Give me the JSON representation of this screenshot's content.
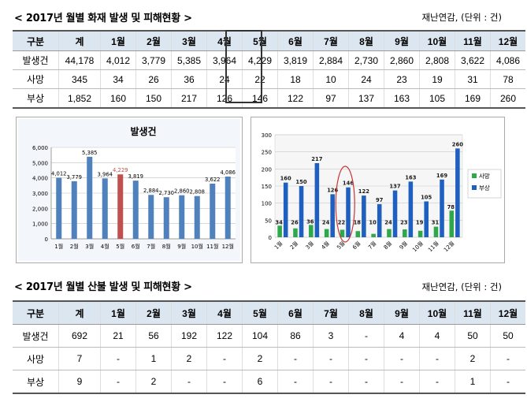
{
  "fire": {
    "title": "< 2017년 월별 화재 발생 및 피해현황 >",
    "source": "재난연감, (단위 : 건)",
    "headers": [
      "구분",
      "계",
      "1월",
      "2월",
      "3월",
      "4월",
      "5월",
      "6월",
      "7월",
      "8월",
      "9월",
      "10월",
      "11월",
      "12월"
    ],
    "rows": [
      [
        "발생건",
        "44,178",
        "4,012",
        "3,779",
        "5,385",
        "3,964",
        "4,229",
        "3,819",
        "2,884",
        "2,730",
        "2,860",
        "2,808",
        "3,622",
        "4,086"
      ],
      [
        "사망",
        "345",
        "34",
        "26",
        "36",
        "24",
        "22",
        "18",
        "10",
        "24",
        "23",
        "19",
        "31",
        "78"
      ],
      [
        "부상",
        "1,852",
        "160",
        "150",
        "217",
        "126",
        "146",
        "122",
        "97",
        "137",
        "163",
        "105",
        "169",
        "260"
      ]
    ]
  },
  "forest": {
    "title": "< 2017년 월별 산불 발생 및 피해현황 >",
    "source": "재난연감, (단위 : 건)",
    "headers": [
      "구분",
      "계",
      "1월",
      "2월",
      "3월",
      "4월",
      "5월",
      "6월",
      "7월",
      "8월",
      "9월",
      "10월",
      "11월",
      "12월"
    ],
    "rows": [
      [
        "발생건",
        "692",
        "21",
        "56",
        "192",
        "122",
        "104",
        "86",
        "3",
        "-",
        "4",
        "4",
        "50",
        "50"
      ],
      [
        "사망",
        "7",
        "-",
        "1",
        "2",
        "-",
        "2",
        "-",
        "-",
        "-",
        "-",
        "-",
        "2",
        "-"
      ],
      [
        "부상",
        "9",
        "-",
        "2",
        "-",
        "-",
        "6",
        "-",
        "-",
        "-",
        "-",
        "-",
        "1",
        "-"
      ]
    ]
  },
  "colors": {
    "blue": "#4f81bd",
    "red": "#c0504d",
    "dark_blue": "#1f5fbf",
    "green": "#2ea84a",
    "highlight_circle": "#cc3333"
  },
  "chart_data": [
    {
      "type": "bar",
      "title": "발생건",
      "categories": [
        "1월",
        "2월",
        "3월",
        "4월",
        "5월",
        "6월",
        "7월",
        "8월",
        "9월",
        "10월",
        "11월",
        "12월"
      ],
      "values": [
        4012,
        3779,
        5385,
        3964,
        4229,
        3819,
        2884,
        2730,
        2860,
        2808,
        3622,
        4086
      ],
      "value_labels": [
        "4,012",
        "3,779",
        "5,385",
        "3,964",
        "4,229",
        "3,819",
        "2,884",
        "2,730",
        "2,860",
        "2,808",
        "3,622",
        "4,086"
      ],
      "highlight_index": 4,
      "ylim": [
        0,
        6000
      ],
      "yticks": [
        "0",
        "1,000",
        "2,000",
        "3,000",
        "4,000",
        "5,000",
        "6,000"
      ],
      "xlabel": "",
      "ylabel": "",
      "grid": true
    },
    {
      "type": "bar",
      "title": "",
      "categories": [
        "1월",
        "2월",
        "3월",
        "4월",
        "5월",
        "6월",
        "7월",
        "8월",
        "9월",
        "10월",
        "11월",
        "12월"
      ],
      "series": [
        {
          "name": "사망",
          "values": [
            34,
            26,
            36,
            24,
            22,
            18,
            10,
            24,
            23,
            19,
            31,
            78
          ]
        },
        {
          "name": "부상",
          "values": [
            160,
            150,
            217,
            126,
            146,
            122,
            97,
            137,
            163,
            105,
            169,
            260
          ]
        }
      ],
      "ylim": [
        0,
        300
      ],
      "yticks": [
        "0",
        "50",
        "100",
        "150",
        "200",
        "250",
        "300"
      ],
      "legend": "right",
      "highlight_index": 4,
      "xlabel": "",
      "ylabel": "",
      "grid": true
    }
  ]
}
